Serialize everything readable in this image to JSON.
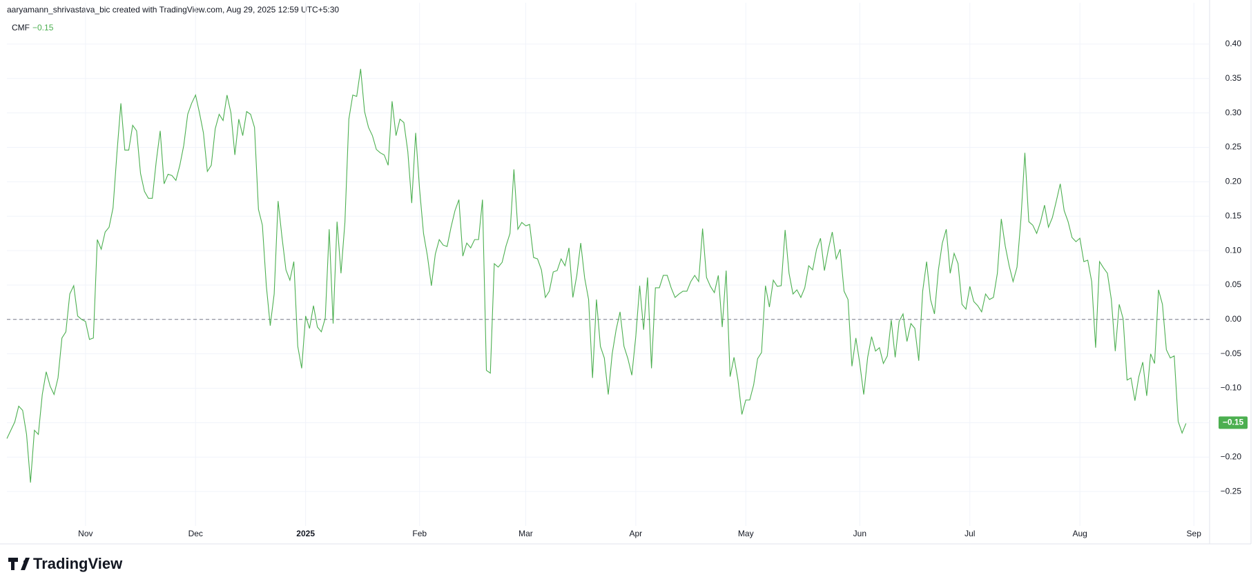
{
  "header": "aaryamann_shrivastava_bic created with TradingView.com, Aug 29, 2025 12:59 UTC+5:30",
  "brand": "TradingView",
  "chart_data": {
    "type": "line",
    "series": [
      {
        "name": "CMF",
        "color": "#4caf50",
        "values": [
          -0.173,
          -0.161,
          -0.149,
          -0.126,
          -0.132,
          -0.167,
          -0.237,
          -0.161,
          -0.167,
          -0.109,
          -0.076,
          -0.097,
          -0.109,
          -0.085,
          -0.027,
          -0.018,
          0.037,
          0.049,
          0.005,
          0.0,
          -0.003,
          -0.029,
          -0.027,
          0.116,
          0.102,
          0.127,
          0.134,
          0.162,
          0.242,
          0.314,
          0.246,
          0.246,
          0.282,
          0.274,
          0.212,
          0.186,
          0.176,
          0.176,
          0.23,
          0.274,
          0.197,
          0.211,
          0.209,
          0.202,
          0.224,
          0.253,
          0.298,
          0.314,
          0.326,
          0.3,
          0.271,
          0.215,
          0.224,
          0.277,
          0.298,
          0.289,
          0.326,
          0.3,
          0.239,
          0.291,
          0.267,
          0.302,
          0.298,
          0.279,
          0.16,
          0.137,
          0.049,
          -0.009,
          0.037,
          0.172,
          0.119,
          0.072,
          0.057,
          0.084,
          -0.039,
          -0.071,
          0.005,
          -0.013,
          0.02,
          -0.011,
          -0.018,
          0.002,
          0.131,
          -0.006,
          0.142,
          0.067,
          0.141,
          0.291,
          0.326,
          0.324,
          0.364,
          0.302,
          0.279,
          0.267,
          0.247,
          0.242,
          0.239,
          0.224,
          0.317,
          0.267,
          0.291,
          0.286,
          0.244,
          0.169,
          0.271,
          0.189,
          0.125,
          0.092,
          0.049,
          0.095,
          0.116,
          0.108,
          0.106,
          0.134,
          0.158,
          0.174,
          0.092,
          0.111,
          0.104,
          0.116,
          0.116,
          0.174,
          -0.074,
          -0.078,
          0.081,
          0.076,
          0.083,
          0.107,
          0.125,
          0.218,
          0.131,
          0.141,
          0.136,
          0.138,
          0.09,
          0.088,
          0.072,
          0.032,
          0.041,
          0.069,
          0.071,
          0.088,
          0.078,
          0.104,
          0.032,
          0.064,
          0.111,
          0.06,
          0.029,
          -0.085,
          0.029,
          -0.039,
          -0.056,
          -0.109,
          -0.05,
          -0.015,
          0.011,
          -0.039,
          -0.057,
          -0.081,
          -0.025,
          0.049,
          -0.015,
          0.061,
          -0.071,
          0.046,
          0.046,
          0.064,
          0.064,
          0.046,
          0.032,
          0.037,
          0.041,
          0.041,
          0.055,
          0.064,
          0.055,
          0.132,
          0.061,
          0.048,
          0.039,
          0.064,
          -0.011,
          0.071,
          -0.083,
          -0.055,
          -0.088,
          -0.138,
          -0.117,
          -0.117,
          -0.095,
          -0.057,
          -0.048,
          0.049,
          0.018,
          0.057,
          0.048,
          0.049,
          0.13,
          0.067,
          0.037,
          0.043,
          0.032,
          0.046,
          0.078,
          0.072,
          0.102,
          0.118,
          0.071,
          0.102,
          0.127,
          0.088,
          0.102,
          0.041,
          0.029,
          -0.068,
          -0.027,
          -0.064,
          -0.109,
          -0.055,
          -0.025,
          -0.046,
          -0.041,
          -0.064,
          -0.053,
          -0.001,
          -0.055,
          -0.003,
          0.008,
          -0.032,
          -0.006,
          -0.013,
          -0.06,
          0.041,
          0.084,
          0.029,
          0.008,
          0.072,
          0.111,
          0.131,
          0.067,
          0.096,
          0.081,
          0.022,
          0.015,
          0.048,
          0.026,
          0.02,
          0.011,
          0.037,
          0.029,
          0.032,
          0.067,
          0.146,
          0.107,
          0.078,
          0.055,
          0.076,
          0.146,
          0.242,
          0.142,
          0.137,
          0.125,
          0.142,
          0.166,
          0.134,
          0.148,
          0.172,
          0.197,
          0.158,
          0.142,
          0.119,
          0.113,
          0.118,
          0.084,
          0.086,
          0.055,
          -0.041,
          0.084,
          0.075,
          0.067,
          0.029,
          -0.046,
          0.022,
          0.001,
          -0.088,
          -0.085,
          -0.118,
          -0.083,
          -0.062,
          -0.111,
          -0.05,
          -0.064,
          0.043,
          0.022,
          -0.044,
          -0.056,
          -0.053,
          -0.148,
          -0.165,
          -0.151
        ]
      }
    ],
    "x": [
      0,
      1,
      2,
      3,
      4,
      5,
      6,
      7,
      8,
      9,
      10,
      11,
      12,
      13,
      14,
      15,
      16,
      17,
      18,
      19,
      20,
      21,
      22,
      23,
      24,
      25,
      26,
      27,
      28,
      29,
      30,
      31,
      32,
      33,
      34,
      35,
      36,
      37,
      38,
      39,
      40,
      41,
      42,
      43,
      44,
      45,
      46,
      47,
      48,
      49,
      50,
      51,
      52,
      53,
      54,
      55,
      56,
      57,
      58,
      59,
      60,
      61,
      62,
      63,
      64,
      65,
      66,
      67,
      68,
      69,
      70,
      71,
      72,
      73,
      74,
      75,
      76,
      77,
      78,
      79,
      80,
      81,
      82,
      83,
      84,
      85,
      86,
      87,
      88,
      89,
      90,
      91,
      92,
      93,
      94,
      95,
      96,
      97,
      98,
      99,
      100,
      101,
      102,
      103,
      104,
      105,
      106,
      107,
      108,
      109,
      110,
      111,
      112,
      113,
      114,
      115,
      116,
      117,
      118,
      119,
      120,
      121,
      122,
      123,
      124,
      125,
      126,
      127,
      128,
      129,
      130,
      131,
      132,
      133,
      134,
      135,
      136,
      137,
      138,
      139,
      140,
      141,
      142,
      143,
      144,
      145,
      146,
      147,
      148,
      149,
      150,
      151,
      152,
      153,
      154,
      155,
      156,
      157,
      158,
      159,
      160,
      161,
      162,
      163,
      164,
      165,
      166,
      167,
      168,
      169,
      170,
      171,
      172,
      173,
      174,
      175,
      176,
      177,
      178,
      179,
      180,
      181,
      182,
      183,
      184,
      185,
      186,
      187,
      188,
      189,
      190,
      191,
      192,
      193,
      194,
      195,
      196,
      197,
      198,
      199,
      200,
      201,
      202,
      203,
      204,
      205,
      206,
      207,
      208,
      209,
      210,
      211,
      212,
      213,
      214,
      215,
      216,
      217,
      218,
      219,
      220,
      221,
      222,
      223,
      224,
      225,
      226,
      227,
      228,
      229,
      230,
      231,
      232,
      233,
      234,
      235,
      236,
      237,
      238,
      239,
      240,
      241,
      242,
      243,
      244,
      245,
      246,
      247,
      248,
      249,
      250,
      251,
      252,
      253,
      254,
      255,
      256,
      257,
      258,
      259,
      260,
      261,
      262,
      263,
      264,
      265,
      266,
      267,
      268,
      269,
      270,
      271,
      272,
      273,
      274,
      275,
      276,
      277,
      278,
      279,
      280,
      281,
      282,
      283,
      284,
      285,
      286,
      287,
      288,
      289,
      290,
      291,
      292,
      293,
      294,
      295,
      296,
      297,
      298,
      299,
      300
    ],
    "xlim": [
      0,
      306
    ],
    "xticks": [
      {
        "value": 20,
        "label": "Nov"
      },
      {
        "value": 48,
        "label": "Dec"
      },
      {
        "value": 76,
        "label": "2025"
      },
      {
        "value": 105,
        "label": "Feb"
      },
      {
        "value": 132,
        "label": "Mar"
      },
      {
        "value": 160,
        "label": "Apr"
      },
      {
        "value": 188,
        "label": "May"
      },
      {
        "value": 217,
        "label": "Jun"
      },
      {
        "value": 245,
        "label": "Jul"
      },
      {
        "value": 273,
        "label": "Aug"
      },
      {
        "value": 302,
        "label": "Sep"
      }
    ],
    "ylim": [
      -0.3,
      0.44
    ],
    "yticks": [
      {
        "value": 0.4,
        "label": "0.40"
      },
      {
        "value": 0.35,
        "label": "0.35"
      },
      {
        "value": 0.3,
        "label": "0.30"
      },
      {
        "value": 0.25,
        "label": "0.25"
      },
      {
        "value": 0.2,
        "label": "0.20"
      },
      {
        "value": 0.15,
        "label": "0.15"
      },
      {
        "value": 0.1,
        "label": "0.10"
      },
      {
        "value": 0.05,
        "label": "0.05"
      },
      {
        "value": 0,
        "label": "0.00"
      },
      {
        "value": -0.05,
        "label": "−0.05"
      },
      {
        "value": -0.1,
        "label": "−0.10"
      },
      {
        "value": -0.15,
        "label": "−0.15"
      },
      {
        "value": -0.2,
        "label": "−0.20"
      },
      {
        "value": -0.25,
        "label": "−0.25"
      }
    ],
    "hline": 0,
    "last_value": {
      "value": -0.15,
      "label": "−0.15"
    },
    "grid": true
  }
}
